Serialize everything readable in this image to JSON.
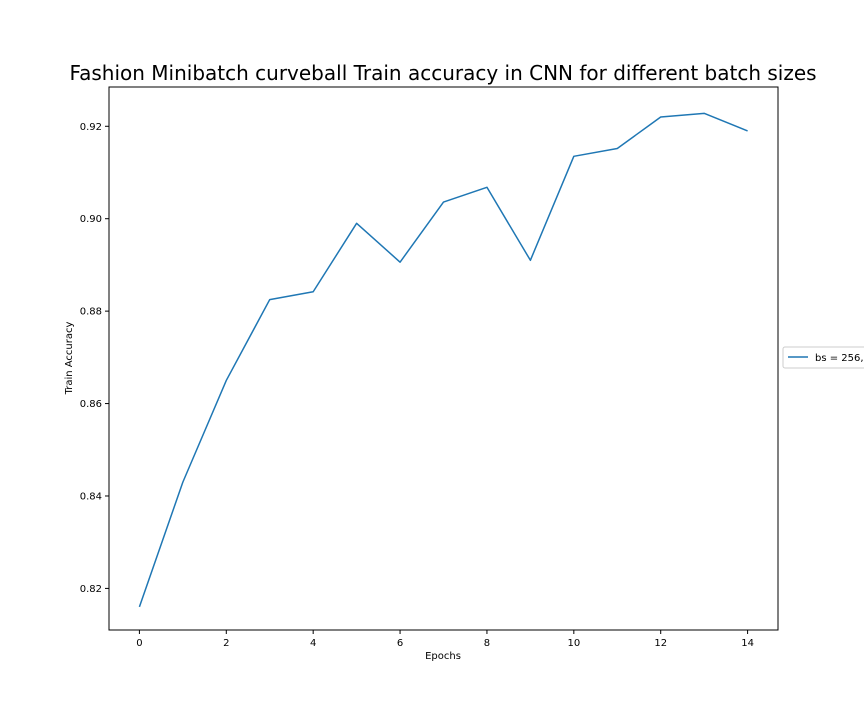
{
  "chart_data": {
    "type": "line",
    "title": "Fashion Minibatch curveball Train accuracy in CNN for different batch sizes",
    "xlabel": "Epochs",
    "ylabel": "Train Accuracy",
    "xlim": [
      -0.7,
      14.7
    ],
    "ylim": [
      0.811,
      0.9285
    ],
    "xticks": [
      0,
      2,
      4,
      6,
      8,
      10,
      12,
      14
    ],
    "yticks": [
      0.82,
      0.84,
      0.86,
      0.88,
      0.9,
      0.92
    ],
    "ytick_labels": [
      "0.82",
      "0.84",
      "0.86",
      "0.88",
      "0.90",
      "0.92"
    ],
    "grid": false,
    "legend_position": "right, outside plot, clipped",
    "series": [
      {
        "name": "bs = 256,",
        "color": "#1f77b4",
        "x": [
          0,
          1,
          2,
          3,
          4,
          5,
          6,
          7,
          8,
          9,
          10,
          11,
          12,
          13,
          14
        ],
        "values": [
          0.816,
          0.843,
          0.865,
          0.8825,
          0.8842,
          0.899,
          0.8906,
          0.9036,
          0.9068,
          0.891,
          0.9135,
          0.9152,
          0.922,
          0.9228,
          0.919
        ]
      }
    ]
  }
}
